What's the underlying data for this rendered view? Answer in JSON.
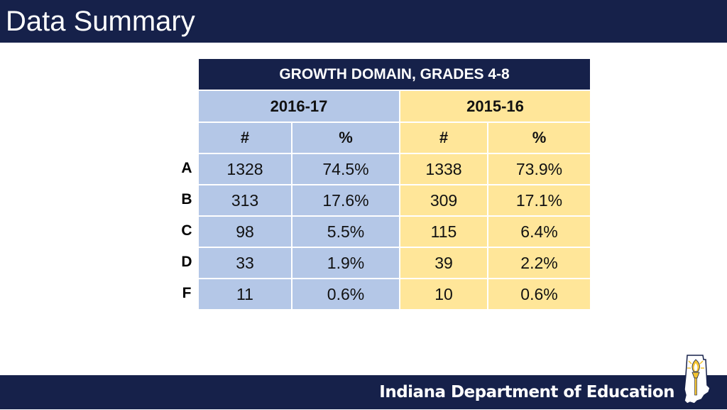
{
  "slide": {
    "title": "Data Summary",
    "footer_org": "Indiana Department of Education"
  },
  "table": {
    "heading": "GROWTH DOMAIN, GRADES 4-8",
    "years": [
      "2016-17",
      "2015-16"
    ],
    "subheaders": [
      "#",
      "%",
      "#",
      "%"
    ],
    "rows": [
      {
        "grade": "A",
        "values": [
          "1328",
          "74.5%",
          "1338",
          "73.9%"
        ]
      },
      {
        "grade": "B",
        "values": [
          "313",
          "17.6%",
          "309",
          "17.1%"
        ]
      },
      {
        "grade": "C",
        "values": [
          "98",
          "5.5%",
          "115",
          "6.4%"
        ]
      },
      {
        "grade": "D",
        "values": [
          "33",
          "1.9%",
          "39",
          "2.2%"
        ]
      },
      {
        "grade": "F",
        "values": [
          "11",
          "0.6%",
          "10",
          "0.6%"
        ]
      }
    ]
  },
  "colors": {
    "navy": "#16214a",
    "year1_fill": "#b4c7e7",
    "year2_fill": "#ffe699",
    "torch_gold": "#f2c230"
  },
  "icons": [
    "indiana-torch-logo-icon"
  ]
}
